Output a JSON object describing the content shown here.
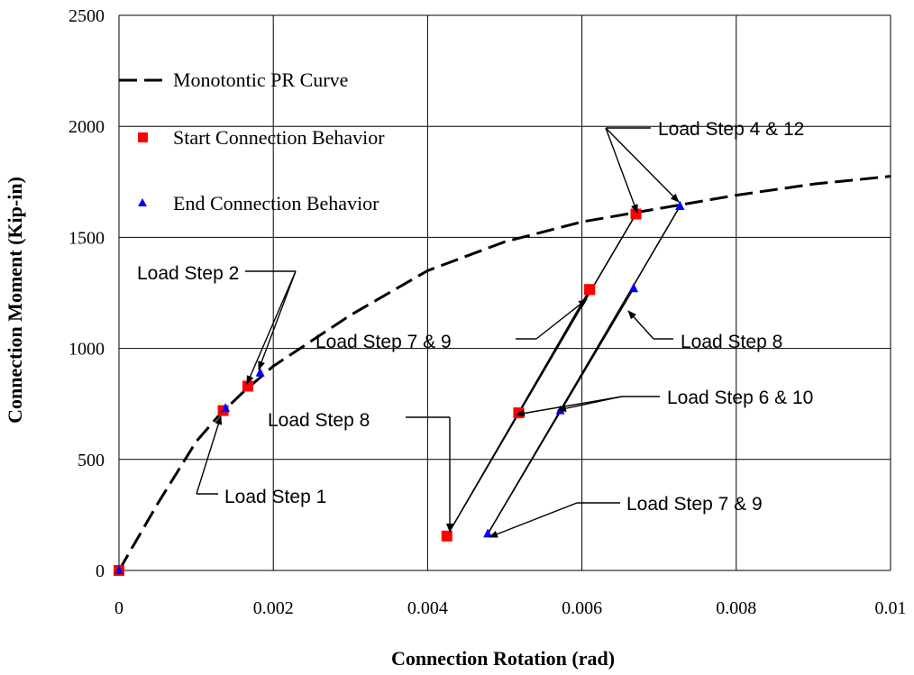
{
  "chart_data": {
    "type": "scatter",
    "title": "",
    "xlabel": "Connection Rotation (rad)",
    "ylabel": "Connection Moment (Kip-in)",
    "xlim": [
      0,
      0.01
    ],
    "ylim": [
      0,
      2500
    ],
    "grid": true,
    "legend_position": "top-left",
    "x_ticks": [
      "0",
      "0.002",
      "0.004",
      "0.006",
      "0.008",
      "0.01"
    ],
    "y_ticks": [
      "0",
      "500",
      "1000",
      "1500",
      "2000",
      "2500"
    ],
    "colors": {
      "start": "#ff0000",
      "end": "#0000ff",
      "curve": "#000000"
    },
    "series": [
      {
        "name": "Monotontic PR Curve",
        "style": "dashed-line",
        "x": [
          0,
          0.0005,
          0.001,
          0.0013,
          0.0016,
          0.002,
          0.003,
          0.004,
          0.005,
          0.006,
          0.007,
          0.008,
          0.009,
          0.01
        ],
        "y": [
          0,
          300,
          580,
          700,
          800,
          920,
          1150,
          1350,
          1480,
          1570,
          1630,
          1690,
          1740,
          1775
        ]
      },
      {
        "name": "Start Connection Behavior",
        "marker": "square",
        "x": [
          0,
          0.00135,
          0.00167,
          0.0067,
          0.0061,
          0.00518,
          0.00425,
          0.0061,
          0.0067
        ],
        "y": [
          0,
          720,
          830,
          1605,
          1265,
          710,
          155,
          1265,
          1605
        ]
      },
      {
        "name": "End Connection Behavior",
        "marker": "triangle",
        "x": [
          0,
          0.00138,
          0.00183,
          0.00727,
          0.00667,
          0.00572,
          0.00478,
          0.00667,
          0.00727
        ],
        "y": [
          0,
          730,
          890,
          1640,
          1270,
          720,
          165,
          1270,
          1640
        ]
      }
    ],
    "annotations": [
      {
        "text": "Load Step 4 & 12"
      },
      {
        "text": "Load Step 2"
      },
      {
        "text": "Load Step 7 & 9"
      },
      {
        "text": "Load Step 8"
      },
      {
        "text": "Load Step 6 & 10"
      },
      {
        "text": "Load Step 8"
      },
      {
        "text": "Load Step 1"
      },
      {
        "text": "Load Step 7 & 9"
      }
    ]
  }
}
